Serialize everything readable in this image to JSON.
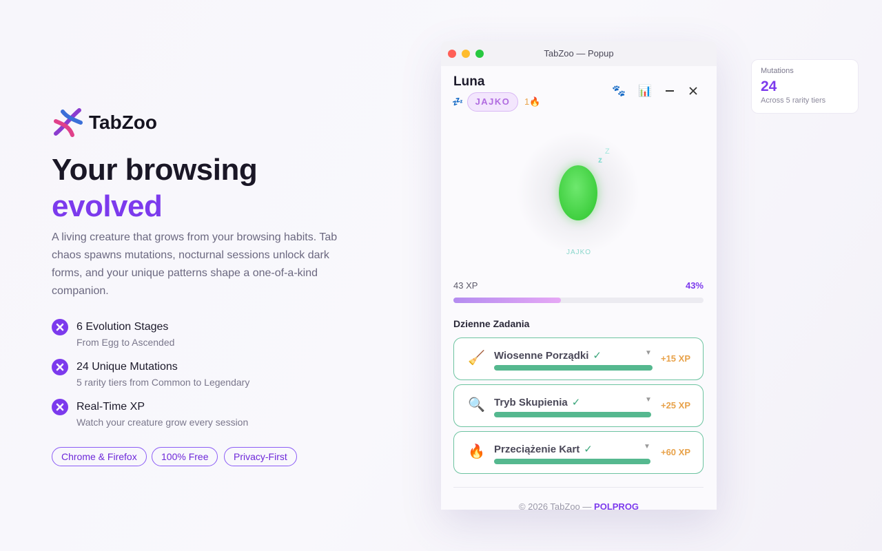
{
  "brand": {
    "name": "TabZoo"
  },
  "hero": {
    "title_line1": "Your browsing",
    "title_line2": "evolved",
    "description": "A living creature that grows from your browsing habits. Tab chaos spawns mutations, nocturnal sessions unlock dark forms, and your unique patterns shape a one-of-a-kind companion."
  },
  "features": [
    {
      "title": "6 Evolution Stages",
      "subtitle": "From Egg to Ascended"
    },
    {
      "title": "24 Unique Mutations",
      "subtitle": "5 rarity tiers from Common to Legendary"
    },
    {
      "title": "Real-Time XP",
      "subtitle": "Watch your creature grow every session"
    }
  ],
  "badges": [
    "Chrome & Firefox",
    "100% Free",
    "Privacy-First"
  ],
  "popup": {
    "window_title": "TabZoo — Popup",
    "pet_name": "Luna",
    "sleep_icon": "💤",
    "stage_pill": "JAJKO",
    "streak": "1🔥",
    "toolbar_icons": [
      "🐾",
      "📊"
    ],
    "zz": "z",
    "zz_big": "Z",
    "stage_caption": "JAJKO",
    "xp_label": "43 XP",
    "percent_label": "43%",
    "percent": 43,
    "quests_title": "Dzienne Zadania",
    "quests": [
      {
        "icon": "🧹",
        "title": "Wiosenne Porządki",
        "check": "✓",
        "reward": "+15 XP"
      },
      {
        "icon": "🔍",
        "title": "Tryb Skupienia",
        "check": "✓",
        "reward": "+25 XP"
      },
      {
        "icon": "🔥",
        "title": "Przeciążenie Kart",
        "check": "✓",
        "reward": "+60 XP"
      }
    ],
    "footer_prefix": "© 2026 TabZoo —",
    "footer_link": "POLPROG"
  },
  "stat_card": {
    "label": "Mutations",
    "value": "24",
    "caption": "Across 5 rarity tiers"
  }
}
